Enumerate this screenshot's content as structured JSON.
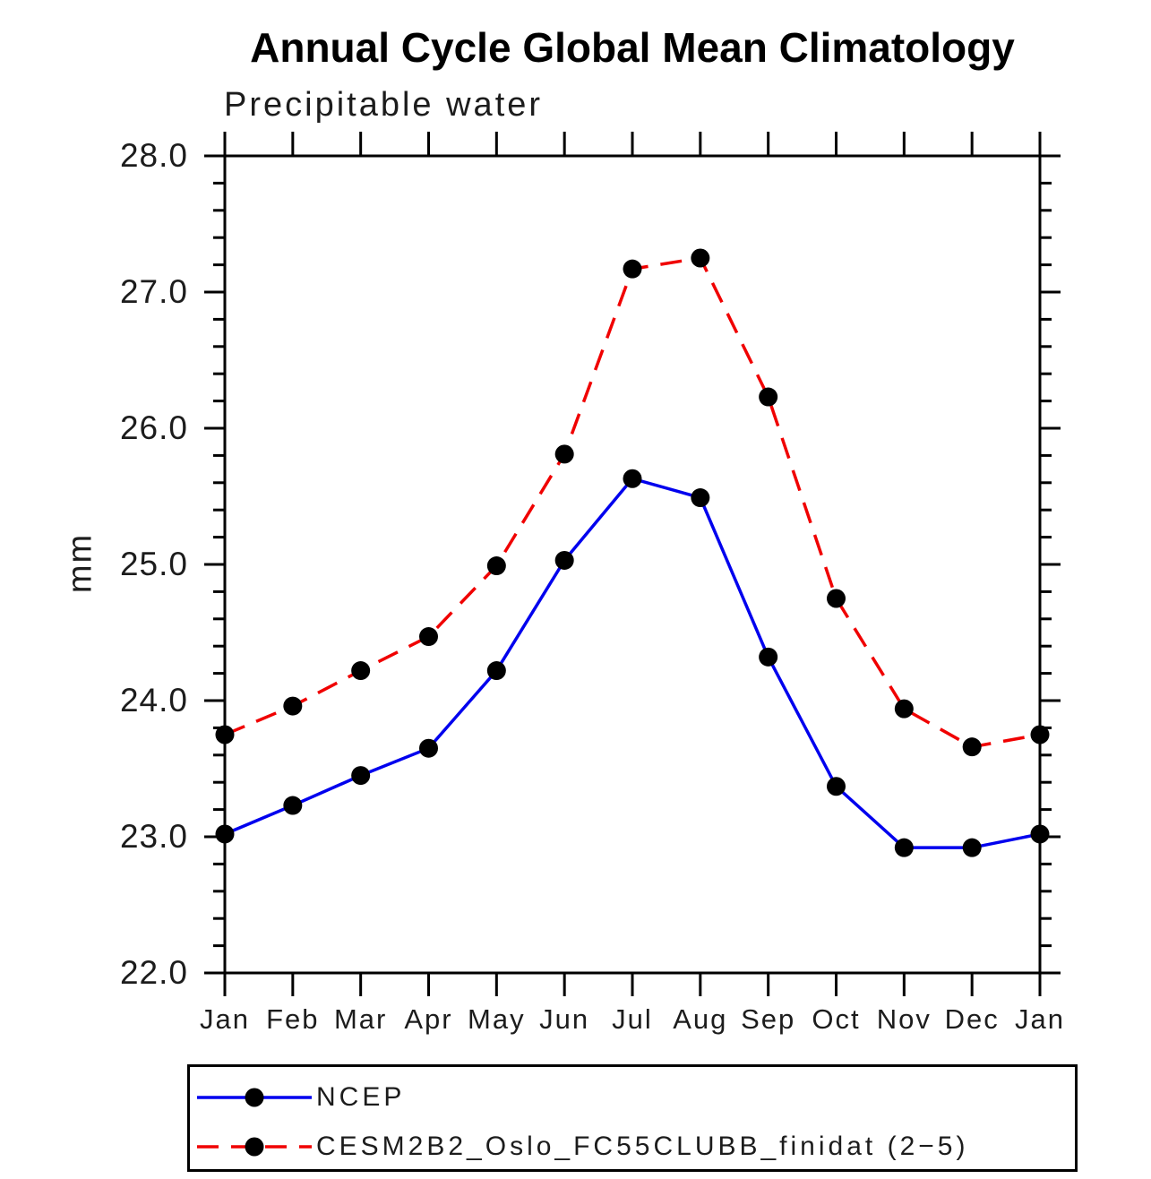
{
  "header": {
    "title": "Annual Cycle Global Mean Climatology",
    "subtitle": "Precipitable water"
  },
  "axes": {
    "ylabel": "mm",
    "ytick_labels": [
      "22.0",
      "23.0",
      "24.0",
      "25.0",
      "26.0",
      "27.0",
      "28.0"
    ],
    "xtick_labels": [
      "Jan",
      "Feb",
      "Mar",
      "Apr",
      "May",
      "Jun",
      "Jul",
      "Aug",
      "Sep",
      "Oct",
      "Nov",
      "Dec",
      "Jan"
    ]
  },
  "chart_data": {
    "type": "line",
    "title": "Annual Cycle Global Mean Climatology",
    "subtitle": "Precipitable water",
    "ylabel": "mm",
    "xlabel": "",
    "categories": [
      "Jan",
      "Feb",
      "Mar",
      "Apr",
      "May",
      "Jun",
      "Jul",
      "Aug",
      "Sep",
      "Oct",
      "Nov",
      "Dec",
      "Jan"
    ],
    "ylim": [
      22.0,
      28.0
    ],
    "ytick_interval": 1.0,
    "yminor_interval": 0.2,
    "grid": false,
    "legend_position": "bottom",
    "marker": {
      "shape": "circle",
      "color": "#000000",
      "radius": 10.5
    },
    "series": [
      {
        "name": "NCEP",
        "color": "#0000ee",
        "line_style": "solid",
        "values": [
          23.02,
          23.23,
          23.45,
          23.65,
          24.22,
          25.03,
          25.63,
          25.49,
          24.32,
          23.37,
          22.92,
          22.92,
          23.02
        ]
      },
      {
        "name": "CESM2B2_Oslo_FC55CLUBB_finidat (2−5)",
        "color": "#f00000",
        "line_style": "dashed",
        "values": [
          23.75,
          23.96,
          24.22,
          24.47,
          24.99,
          25.81,
          27.17,
          27.25,
          26.23,
          24.75,
          23.94,
          23.66,
          23.75
        ]
      }
    ]
  }
}
